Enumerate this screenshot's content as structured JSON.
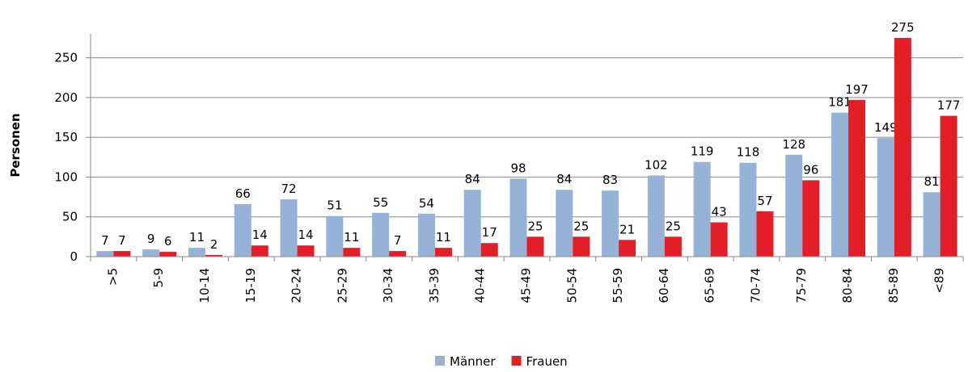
{
  "chart_data": {
    "type": "bar",
    "y_label": "Personen",
    "categories": [
      ">5",
      "5-9",
      "10-14",
      "15-19",
      "20-24",
      "25-29",
      "30-34",
      "35-39",
      "40-44",
      "45-49",
      "50-54",
      "55-59",
      "60-64",
      "65-69",
      "70-74",
      "75-79",
      "80-84",
      "85-89",
      "<89"
    ],
    "series": [
      {
        "name": "Männer",
        "color": "#95b3d7",
        "values": [
          7,
          9,
          11,
          66,
          72,
          51,
          55,
          54,
          84,
          98,
          84,
          83,
          102,
          119,
          118,
          128,
          181,
          149,
          81
        ]
      },
      {
        "name": "Frauen",
        "color": "#e41e26",
        "values": [
          7,
          6,
          2,
          14,
          14,
          11,
          7,
          11,
          17,
          25,
          25,
          21,
          25,
          43,
          57,
          96,
          197,
          275,
          177
        ]
      }
    ],
    "ylim": [
      0,
      280
    ],
    "yticks": [
      0,
      50,
      100,
      150,
      200,
      250
    ],
    "grid": true,
    "legend": "bottom"
  }
}
